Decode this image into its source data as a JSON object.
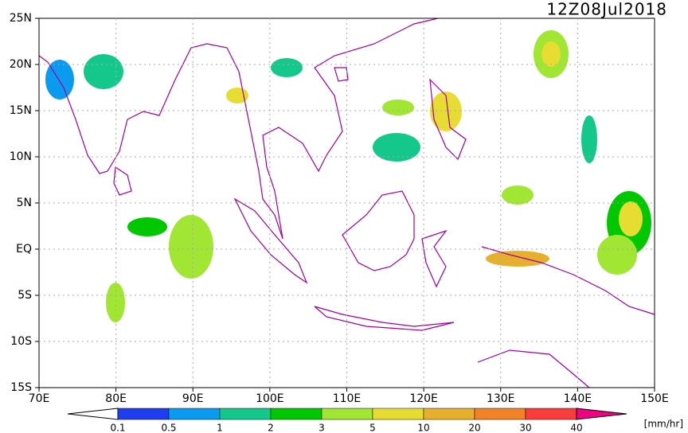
{
  "title": "12Z08Jul2018",
  "lat_labels": [
    "25N",
    "20N",
    "15N",
    "10N",
    "5N",
    "EQ",
    "5S",
    "10S",
    "15S"
  ],
  "lon_labels": [
    "70E",
    "80E",
    "90E",
    "100E",
    "110E",
    "120E",
    "130E",
    "140E",
    "150E"
  ],
  "colorbar": {
    "levels": [
      0.1,
      0.5,
      1,
      2,
      3,
      5,
      10,
      20,
      30,
      40
    ],
    "colors": [
      "#1e3cf0",
      "#0a9bf0",
      "#14c88c",
      "#00c800",
      "#a0e632",
      "#e6dc32",
      "#e6af2d",
      "#f08228",
      "#fa3c3c"
    ],
    "over_color": "#f00082",
    "unit": "[mm/hr]"
  }
}
